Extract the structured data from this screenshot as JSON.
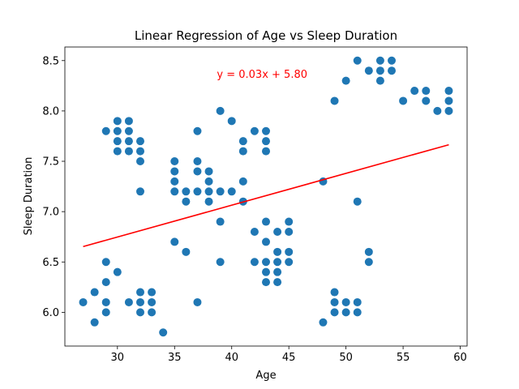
{
  "chart_data": {
    "type": "scatter",
    "title": "Linear Regression of Age vs Sleep Duration",
    "xlabel": "Age",
    "ylabel": "Sleep Duration",
    "xlim": [
      25.4,
      60.6
    ],
    "ylim": [
      5.665,
      8.635
    ],
    "xticks": [
      30,
      35,
      40,
      45,
      50,
      55,
      60
    ],
    "yticks": [
      6.0,
      6.5,
      7.0,
      7.5,
      8.0,
      8.5
    ],
    "xtick_labels": [
      "30",
      "35",
      "40",
      "45",
      "50",
      "55",
      "60"
    ],
    "ytick_labels": [
      "6.0",
      "6.5",
      "7.0",
      "7.5",
      "8.0",
      "8.5"
    ],
    "grid": false,
    "point_color": "#1f77b4",
    "line_color": "#ff0000",
    "regression": {
      "equation": "y = 0.03x + 5.80",
      "slope": 0.0316,
      "intercept": 5.8,
      "x_range": [
        27,
        59
      ],
      "label_position": [
        38.7,
        8.33
      ]
    },
    "points": [
      [
        27,
        6.1
      ],
      [
        28,
        6.2
      ],
      [
        28,
        5.9
      ],
      [
        29,
        7.8
      ],
      [
        29,
        6.5
      ],
      [
        29,
        6.3
      ],
      [
        29,
        6.1
      ],
      [
        29,
        6.0
      ],
      [
        30,
        7.9
      ],
      [
        30,
        7.8
      ],
      [
        30,
        7.7
      ],
      [
        30,
        7.6
      ],
      [
        30,
        6.4
      ],
      [
        31,
        7.9
      ],
      [
        31,
        7.8
      ],
      [
        31,
        7.7
      ],
      [
        31,
        7.6
      ],
      [
        31,
        6.1
      ],
      [
        32,
        7.7
      ],
      [
        32,
        7.6
      ],
      [
        32,
        7.5
      ],
      [
        32,
        7.2
      ],
      [
        32,
        6.2
      ],
      [
        32,
        6.1
      ],
      [
        32,
        6.0
      ],
      [
        33,
        6.2
      ],
      [
        33,
        6.1
      ],
      [
        33,
        6.0
      ],
      [
        34,
        5.8
      ],
      [
        35,
        7.5
      ],
      [
        35,
        7.4
      ],
      [
        35,
        7.3
      ],
      [
        35,
        7.2
      ],
      [
        35,
        6.7
      ],
      [
        36,
        7.2
      ],
      [
        36,
        7.1
      ],
      [
        36,
        6.6
      ],
      [
        37,
        7.8
      ],
      [
        37,
        7.5
      ],
      [
        37,
        7.4
      ],
      [
        37,
        7.2
      ],
      [
        37,
        6.1
      ],
      [
        38,
        7.4
      ],
      [
        38,
        7.3
      ],
      [
        38,
        7.2
      ],
      [
        38,
        7.1
      ],
      [
        39,
        8.0
      ],
      [
        39,
        7.2
      ],
      [
        39,
        6.9
      ],
      [
        39,
        6.5
      ],
      [
        40,
        7.9
      ],
      [
        40,
        7.2
      ],
      [
        41,
        7.7
      ],
      [
        41,
        7.6
      ],
      [
        41,
        7.3
      ],
      [
        41,
        7.1
      ],
      [
        42,
        7.8
      ],
      [
        42,
        6.8
      ],
      [
        42,
        6.5
      ],
      [
        43,
        7.8
      ],
      [
        43,
        7.7
      ],
      [
        43,
        7.6
      ],
      [
        43,
        6.9
      ],
      [
        43,
        6.7
      ],
      [
        43,
        6.5
      ],
      [
        43,
        6.4
      ],
      [
        43,
        6.3
      ],
      [
        44,
        6.8
      ],
      [
        44,
        6.6
      ],
      [
        44,
        6.5
      ],
      [
        44,
        6.4
      ],
      [
        44,
        6.3
      ],
      [
        45,
        6.9
      ],
      [
        45,
        6.8
      ],
      [
        45,
        6.6
      ],
      [
        45,
        6.5
      ],
      [
        48,
        7.3
      ],
      [
        48,
        5.9
      ],
      [
        49,
        8.1
      ],
      [
        49,
        6.2
      ],
      [
        49,
        6.1
      ],
      [
        49,
        6.0
      ],
      [
        50,
        8.3
      ],
      [
        50,
        6.1
      ],
      [
        50,
        6.0
      ],
      [
        51,
        8.5
      ],
      [
        51,
        7.1
      ],
      [
        51,
        6.1
      ],
      [
        51,
        6.0
      ],
      [
        52,
        8.4
      ],
      [
        52,
        6.6
      ],
      [
        52,
        6.5
      ],
      [
        53,
        8.5
      ],
      [
        53,
        8.4
      ],
      [
        53,
        8.3
      ],
      [
        54,
        8.5
      ],
      [
        54,
        8.4
      ],
      [
        55,
        8.1
      ],
      [
        56,
        8.2
      ],
      [
        57,
        8.2
      ],
      [
        57,
        8.1
      ],
      [
        58,
        8.0
      ],
      [
        59,
        8.2
      ],
      [
        59,
        8.1
      ],
      [
        59,
        8.0
      ]
    ]
  }
}
